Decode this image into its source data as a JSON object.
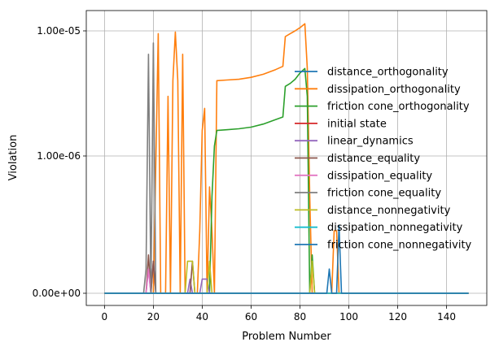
{
  "chart_data": {
    "type": "line",
    "title": "",
    "xlabel": "Problem Number",
    "ylabel": "Violation",
    "yscale": "symlog",
    "xlim": [
      -7.45,
      156.45
    ],
    "xticks": [
      0,
      20,
      40,
      60,
      80,
      100,
      120,
      140
    ],
    "yticks": [
      {
        "value": 0,
        "label": "0.00e+00"
      },
      {
        "value": 1e-06,
        "label": "1.00e-06"
      },
      {
        "value": 1e-05,
        "label": "1.00e-05"
      }
    ],
    "grid": true,
    "legend_position": "right",
    "series": [
      {
        "name": "distance_orthogonality",
        "color": "#1f77b4",
        "points": [
          [
            0,
            0
          ],
          [
            149,
            0
          ]
        ]
      },
      {
        "name": "dissipation_orthogonality",
        "color": "#ff7f0e",
        "points": [
          [
            0,
            0
          ],
          [
            20,
            0
          ],
          [
            22,
            9.5e-06
          ],
          [
            23,
            0
          ],
          [
            25,
            0
          ],
          [
            26,
            3e-06
          ],
          [
            27,
            0
          ],
          [
            28,
            4e-06
          ],
          [
            29,
            9.8e-06
          ],
          [
            30,
            4e-06
          ],
          [
            31,
            0
          ],
          [
            32,
            6.5e-06
          ],
          [
            33,
            0
          ],
          [
            38,
            0
          ],
          [
            39,
            1e-07
          ],
          [
            40,
            1.6e-06
          ],
          [
            41,
            2.4e-06
          ],
          [
            42,
            0
          ],
          [
            43,
            4e-07
          ],
          [
            44,
            1e-07
          ],
          [
            45,
            0
          ],
          [
            46,
            4e-06
          ],
          [
            50,
            4.05e-06
          ],
          [
            55,
            4.1e-06
          ],
          [
            60,
            4.25e-06
          ],
          [
            65,
            4.5e-06
          ],
          [
            70,
            4.9e-06
          ],
          [
            73,
            5.2e-06
          ],
          [
            74,
            9e-06
          ],
          [
            76,
            9.5e-06
          ],
          [
            78,
            1e-05
          ],
          [
            80,
            1.06e-05
          ],
          [
            82,
            1.14e-05
          ],
          [
            83,
            5e-06
          ],
          [
            84,
            3e-07
          ],
          [
            85,
            0
          ],
          [
            93,
            0
          ],
          [
            94,
            1e-07
          ],
          [
            95,
            1e-07
          ],
          [
            96,
            0
          ],
          [
            149,
            0
          ]
        ]
      },
      {
        "name": "friction cone_orthogonality",
        "color": "#2ca02c",
        "points": [
          [
            0,
            0
          ],
          [
            41,
            0
          ],
          [
            43,
            0
          ],
          [
            44,
            3e-07
          ],
          [
            45,
            1.2e-06
          ],
          [
            46,
            1.6e-06
          ],
          [
            50,
            1.62e-06
          ],
          [
            55,
            1.65e-06
          ],
          [
            60,
            1.7e-06
          ],
          [
            65,
            1.8e-06
          ],
          [
            70,
            1.95e-06
          ],
          [
            73,
            2.05e-06
          ],
          [
            74,
            3.6e-06
          ],
          [
            76,
            3.8e-06
          ],
          [
            78,
            4.1e-06
          ],
          [
            80,
            4.6e-06
          ],
          [
            82,
            5e-06
          ],
          [
            83,
            3e-06
          ],
          [
            84,
            0
          ],
          [
            85,
            4e-08
          ],
          [
            86,
            0
          ],
          [
            149,
            0
          ]
        ]
      },
      {
        "name": "initial state",
        "color": "#d62728",
        "points": [
          [
            0,
            0
          ],
          [
            149,
            0
          ]
        ]
      },
      {
        "name": "linear_dynamics",
        "color": "#9467bd",
        "points": [
          [
            0,
            0
          ],
          [
            17,
            0
          ],
          [
            18,
            2e-08
          ],
          [
            19,
            0
          ],
          [
            20,
            3e-08
          ],
          [
            21,
            0
          ],
          [
            34,
            0
          ],
          [
            35,
            1e-08
          ],
          [
            36,
            0
          ],
          [
            39,
            0
          ],
          [
            40,
            1e-08
          ],
          [
            42,
            1e-08
          ],
          [
            43,
            0
          ],
          [
            149,
            0
          ]
        ]
      },
      {
        "name": "distance_equality",
        "color": "#8c564b",
        "points": [
          [
            0,
            0
          ],
          [
            17,
            0
          ],
          [
            18,
            4e-08
          ],
          [
            19,
            0
          ],
          [
            20,
            3e-08
          ],
          [
            21,
            0
          ],
          [
            35,
            0
          ],
          [
            36,
            3e-08
          ],
          [
            37,
            0
          ],
          [
            149,
            0
          ]
        ]
      },
      {
        "name": "dissipation_equality",
        "color": "#e377c2",
        "points": [
          [
            0,
            0
          ],
          [
            17,
            0
          ],
          [
            18,
            2e-08
          ],
          [
            19,
            0
          ],
          [
            149,
            0
          ]
        ]
      },
      {
        "name": "friction cone_equality",
        "color": "#7f7f7f",
        "points": [
          [
            0,
            0
          ],
          [
            16,
            0
          ],
          [
            17,
            2e-08
          ],
          [
            18,
            6.5e-06
          ],
          [
            19,
            0
          ],
          [
            20,
            8e-06
          ],
          [
            21,
            0
          ],
          [
            149,
            0
          ]
        ]
      },
      {
        "name": "distance_nonnegativity",
        "color": "#bcbd22",
        "points": [
          [
            0,
            0
          ],
          [
            33,
            0
          ],
          [
            34,
            3e-08
          ],
          [
            36,
            3e-08
          ],
          [
            37,
            0
          ],
          [
            42,
            0
          ],
          [
            43,
            3e-08
          ],
          [
            44,
            0
          ],
          [
            84,
            0
          ],
          [
            85,
            3e-08
          ],
          [
            86,
            0
          ],
          [
            149,
            0
          ]
        ]
      },
      {
        "name": "dissipation_nonnegativity",
        "color": "#17becf",
        "points": [
          [
            0,
            0
          ],
          [
            149,
            0
          ]
        ]
      },
      {
        "name": "friction cone_nonnegativity",
        "color": "#1f77b4",
        "points": [
          [
            0,
            0
          ],
          [
            90,
            0
          ],
          [
            91,
            0
          ],
          [
            92,
            2e-08
          ],
          [
            93,
            0
          ],
          [
            95,
            0
          ],
          [
            96,
            1.2e-07
          ],
          [
            97,
            0
          ],
          [
            149,
            0
          ]
        ]
      }
    ]
  }
}
